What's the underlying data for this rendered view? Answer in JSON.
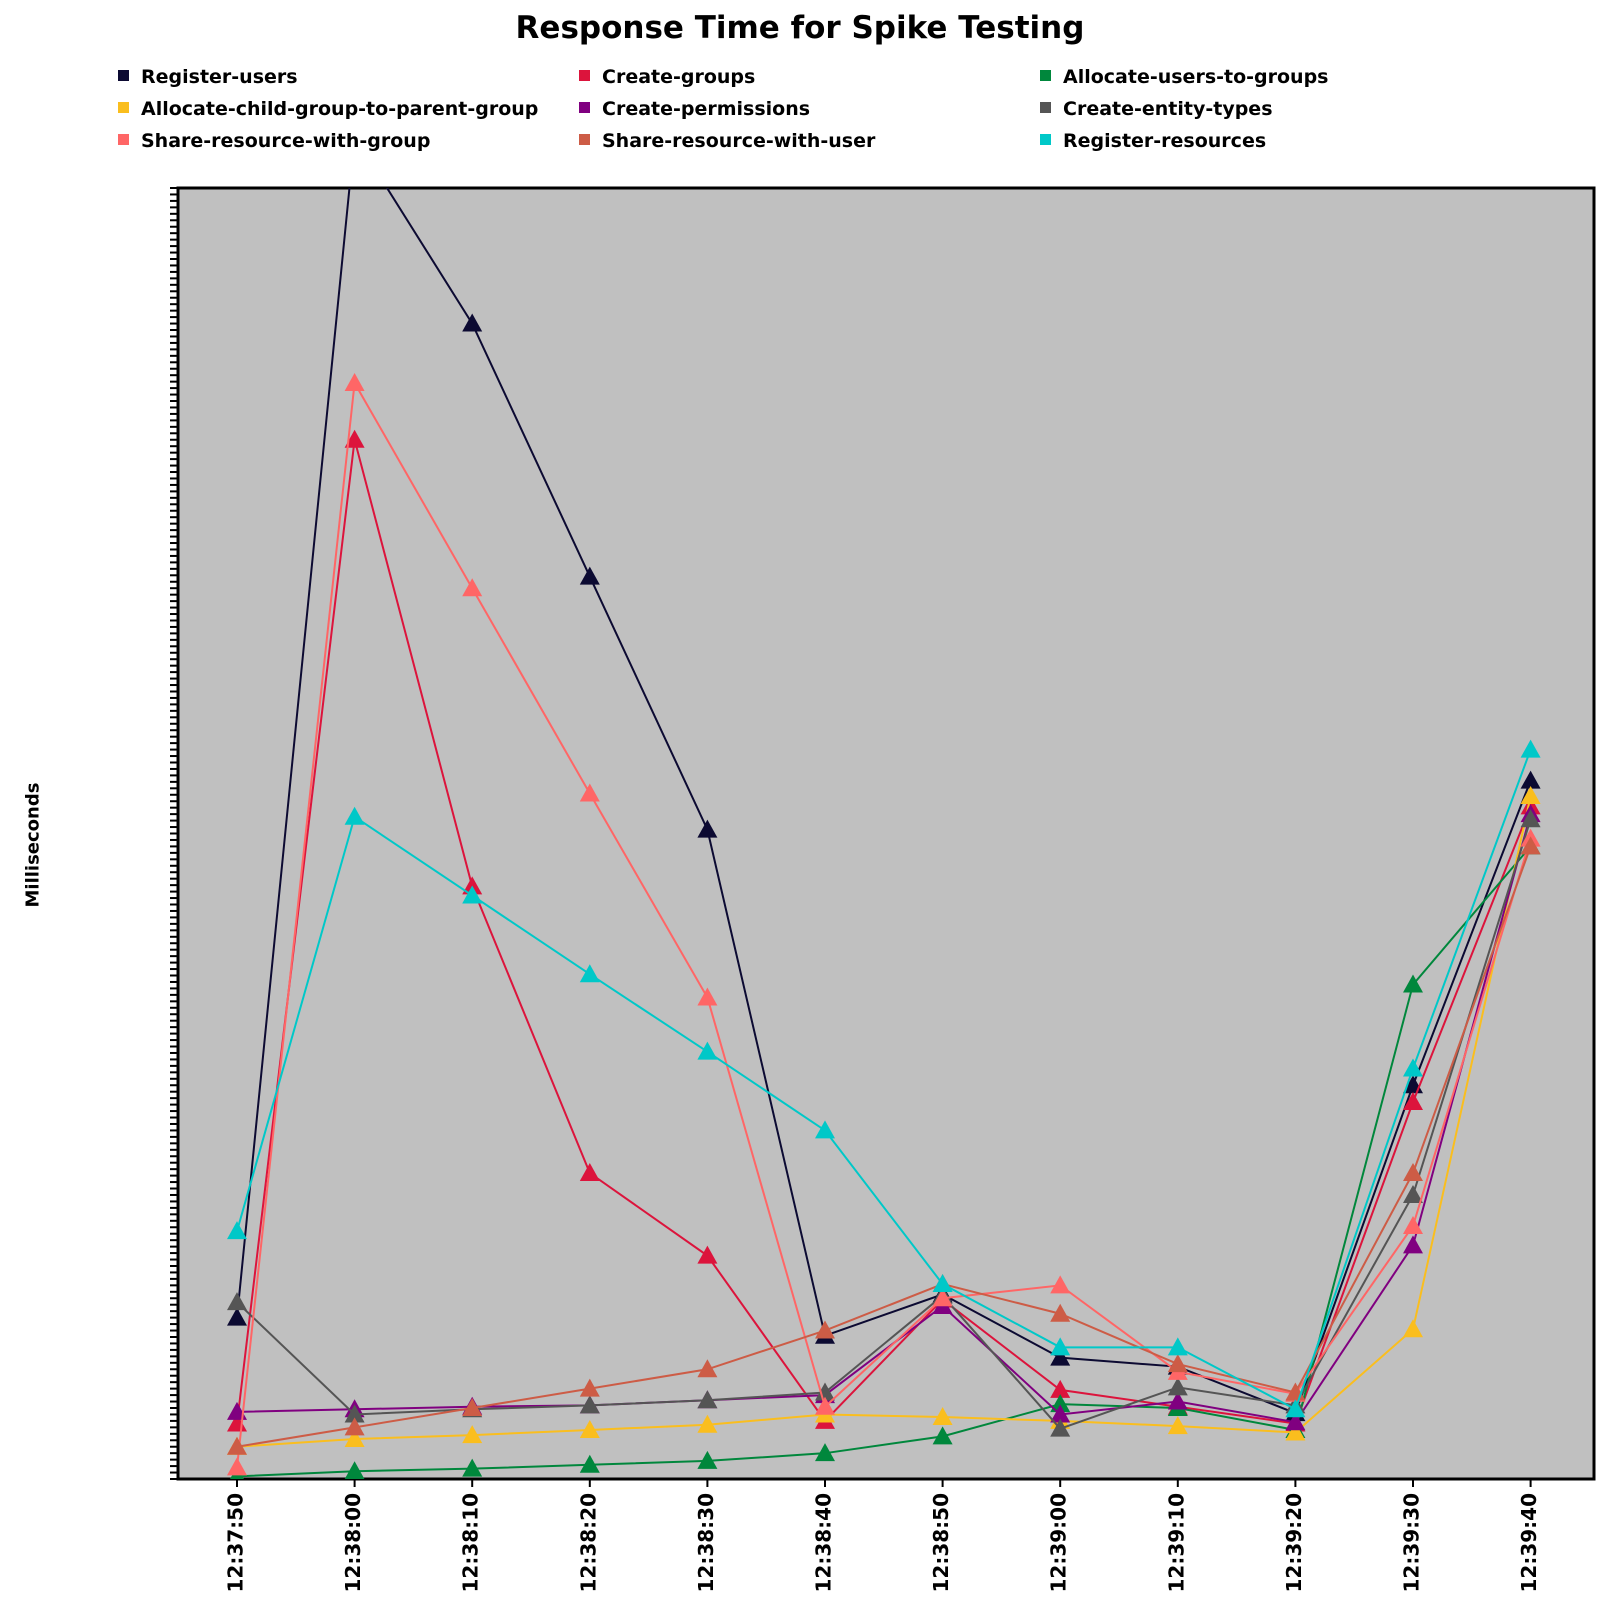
{
  "chart_data": {
    "type": "line",
    "title": "Response Time for Spike Testing",
    "xlabel": "",
    "ylabel": "Milliseconds",
    "x": [
      "12:37:50",
      "12:38:00",
      "12:38:10",
      "12:38:20",
      "12:38:30",
      "12:38:40",
      "12:38:50",
      "12:39:00",
      "12:39:10",
      "12:39:20",
      "12:39:30",
      "12:39:40"
    ],
    "ylim": [
      0,
      1000
    ],
    "grid": false,
    "legend_position": "top",
    "background": "#c0c0c0",
    "marker": "triangle",
    "series": [
      {
        "name": "Register-users",
        "color": "#0c0a32",
        "values": [
          125,
          1040,
          895,
          699,
          503,
          111,
          143,
          94,
          87,
          51,
          305,
          541
        ]
      },
      {
        "name": "Create-groups",
        "color": "#dc143c",
        "values": [
          43,
          805,
          459,
          237,
          173,
          45,
          139,
          69,
          56,
          43,
          292,
          521
        ]
      },
      {
        "name": "Allocate-users-to-groups",
        "color": "#00873c",
        "values": [
          2,
          6,
          8,
          11,
          14,
          20,
          33,
          58,
          55,
          38,
          383,
          490
        ]
      },
      {
        "name": "Allocate-child-group-to-parent-group",
        "color": "#fabe1e",
        "values": [
          25,
          31,
          34,
          38,
          42,
          50,
          48,
          45,
          41,
          36,
          116,
          529
        ]
      },
      {
        "name": "Create-permissions",
        "color": "#800080",
        "values": [
          52,
          54,
          56,
          57,
          61,
          65,
          134,
          50,
          60,
          44,
          181,
          515
        ]
      },
      {
        "name": "Create-entity-types",
        "color": "#555555",
        "values": [
          137,
          50,
          54,
          57,
          61,
          67,
          142,
          39,
          71,
          57,
          220,
          511
        ]
      },
      {
        "name": "Share-resource-with-group",
        "color": "#ff6666",
        "values": [
          9,
          849,
          690,
          531,
          373,
          56,
          140,
          150,
          83,
          66,
          196,
          496
        ]
      },
      {
        "name": "Share-resource-with-user",
        "color": "#cd5c46",
        "values": [
          25,
          40,
          55,
          70,
          85,
          115,
          151,
          128,
          89,
          67,
          237,
          490
        ]
      },
      {
        "name": "Register-resources",
        "color": "#00c8c8",
        "values": [
          192,
          513,
          452,
          391,
          331,
          270,
          151,
          102,
          102,
          54,
          318,
          565
        ]
      }
    ]
  }
}
